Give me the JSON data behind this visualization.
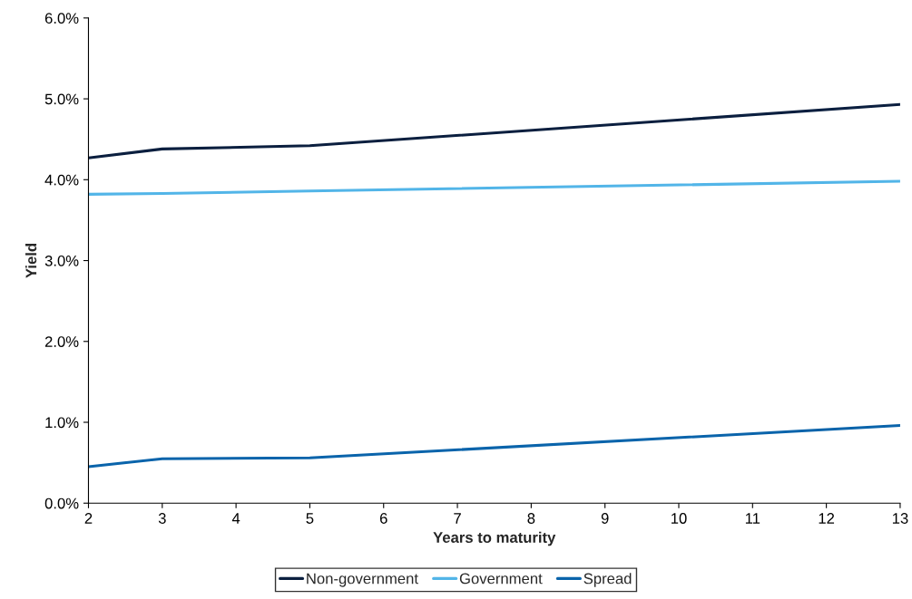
{
  "chart_data": {
    "type": "line",
    "xlabel": "Years to maturity",
    "ylabel": "Yield",
    "x": [
      2,
      3,
      5,
      13
    ],
    "series": [
      {
        "name": "Non-government",
        "color": "#0b1f3f",
        "values": [
          4.27,
          4.38,
          4.42,
          4.93
        ]
      },
      {
        "name": "Government",
        "color": "#52b5e8",
        "values": [
          3.82,
          3.83,
          3.86,
          3.98
        ]
      },
      {
        "name": "Spread",
        "color": "#0a64ab",
        "values": [
          0.45,
          0.55,
          0.56,
          0.96
        ]
      }
    ],
    "xlim": [
      2,
      13
    ],
    "xticks": [
      2,
      3,
      4,
      5,
      6,
      7,
      8,
      9,
      10,
      11,
      12,
      13
    ],
    "ylim": [
      0,
      6
    ],
    "yticks": [
      {
        "value": 0,
        "label": "0.0%"
      },
      {
        "value": 1,
        "label": "1.0%"
      },
      {
        "value": 2,
        "label": "2.0%"
      },
      {
        "value": 3,
        "label": "3.0%"
      },
      {
        "value": 4,
        "label": "4.0%"
      },
      {
        "value": 5,
        "label": "5.0%"
      },
      {
        "value": 6,
        "label": "6.0%"
      }
    ],
    "grid": false,
    "legend": "bottom",
    "marker": "none",
    "line_style": "solid"
  }
}
